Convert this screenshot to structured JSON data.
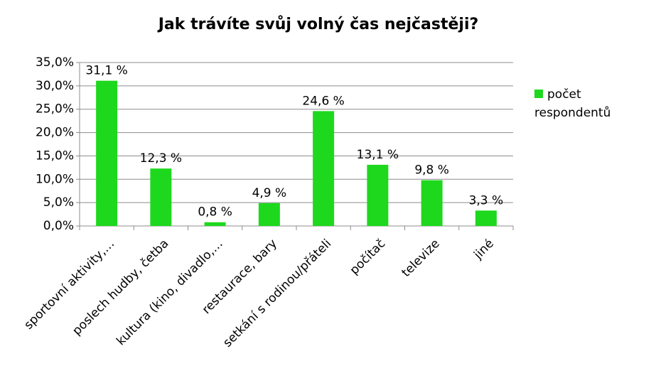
{
  "chart_data": {
    "type": "bar",
    "title": "Jak trávíte svůj volný čas nejčastěji?",
    "categories": [
      "sportovní aktivity,…",
      "poslech hudby, četba",
      "kultura (kino, divadlo,…",
      "restaurace, bary",
      "setkání s rodinou/přáteli",
      "počítač",
      "televize",
      "jiné"
    ],
    "series": [
      {
        "name": "počet respondentů",
        "color": "#1ed81e",
        "values": [
          31.1,
          12.3,
          0.8,
          4.9,
          24.6,
          13.1,
          9.8,
          3.3
        ],
        "value_labels": [
          "31,1 %",
          "12,3 %",
          "0,8 %",
          "4,9 %",
          "24,6 %",
          "13,1 %",
          "9,8 %",
          "3,3 %"
        ]
      }
    ],
    "ylim": [
      0,
      35
    ],
    "yticks": [
      {
        "value": 0,
        "label": "0,0%"
      },
      {
        "value": 5,
        "label": "5,0%"
      },
      {
        "value": 10,
        "label": "10,0%"
      },
      {
        "value": 15,
        "label": "15,0%"
      },
      {
        "value": 20,
        "label": "20,0%"
      },
      {
        "value": 25,
        "label": "25,0%"
      },
      {
        "value": 30,
        "label": "30,0%"
      },
      {
        "value": 35,
        "label": "35,0%"
      }
    ],
    "grid": true,
    "legend": "right"
  }
}
